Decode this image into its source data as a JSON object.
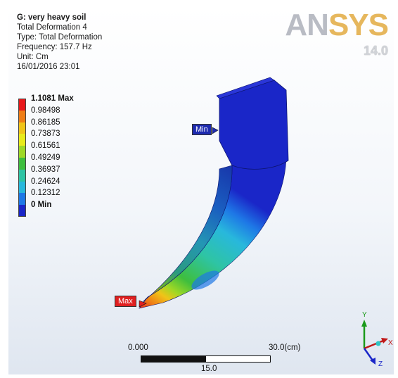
{
  "info": {
    "title": "G: very heavy soil",
    "lines": [
      "Total Deformation 4",
      "Type: Total Deformation",
      "Frequency: 157.7 Hz",
      "Unit: Cm",
      "16/01/2016 23:01"
    ]
  },
  "logo": {
    "brand_a": "AN",
    "brand_b": "SYS",
    "version": "14.0"
  },
  "legend": [
    {
      "label": "1.1081 Max",
      "color": "#e8181a",
      "bold": true
    },
    {
      "label": "0.98498",
      "color": "#ef7d16"
    },
    {
      "label": "0.86185",
      "color": "#f0c418"
    },
    {
      "label": "0.73873",
      "color": "#e8ea1a"
    },
    {
      "label": "0.61561",
      "color": "#9ed826"
    },
    {
      "label": "0.49249",
      "color": "#3ebe3e"
    },
    {
      "label": "0.36937",
      "color": "#2ec4a4"
    },
    {
      "label": "0.24624",
      "color": "#28b8dc"
    },
    {
      "label": "0.12312",
      "color": "#1e78e6"
    },
    {
      "label": "0 Min",
      "color": "#1a26c8",
      "bold": true
    }
  ],
  "probes": {
    "min_label": "Min",
    "max_label": "Max"
  },
  "scale": {
    "start": "0.000",
    "end": "30.0(cm)",
    "mid": "15.0"
  },
  "triad": {
    "x": "X",
    "y": "Y",
    "z": "Z"
  }
}
